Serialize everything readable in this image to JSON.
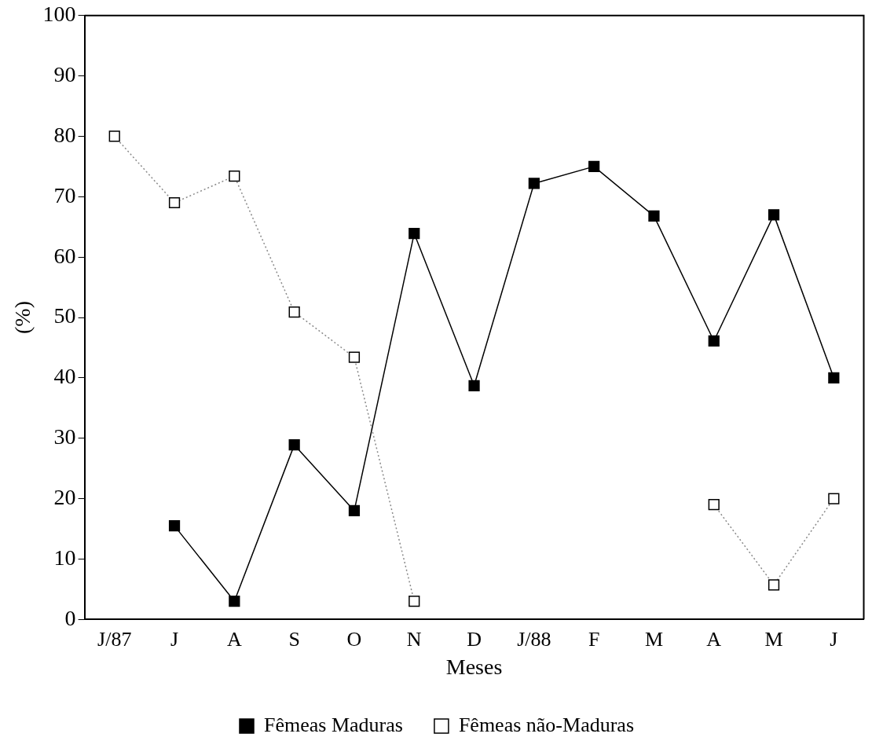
{
  "chart_data": {
    "type": "line",
    "xlabel": "Meses",
    "ylabel": "(%)",
    "categories": [
      "J/87",
      "J",
      "A",
      "S",
      "O",
      "N",
      "D",
      "J/88",
      "F",
      "M",
      "A",
      "M",
      "J"
    ],
    "series": [
      {
        "name": "Fêmeas Maduras",
        "color": "#000000",
        "line_style": "solid",
        "values": [
          null,
          15.5,
          3,
          28.9,
          18,
          63.9,
          38.7,
          72.2,
          75,
          66.8,
          46.1,
          67,
          40
        ]
      },
      {
        "name": "Fêmeas não-Maduras",
        "color": "#ffffff",
        "line_style": "dotted",
        "values": [
          80,
          69,
          73.4,
          50.9,
          43.4,
          3,
          null,
          null,
          null,
          null,
          19,
          5.7,
          20
        ]
      }
    ],
    "ylim": [
      0,
      100
    ],
    "yticks": [
      0,
      10,
      20,
      30,
      40,
      50,
      60,
      70,
      80,
      90,
      100
    ],
    "grid": false,
    "legend": "bottom",
    "marker": "square"
  }
}
